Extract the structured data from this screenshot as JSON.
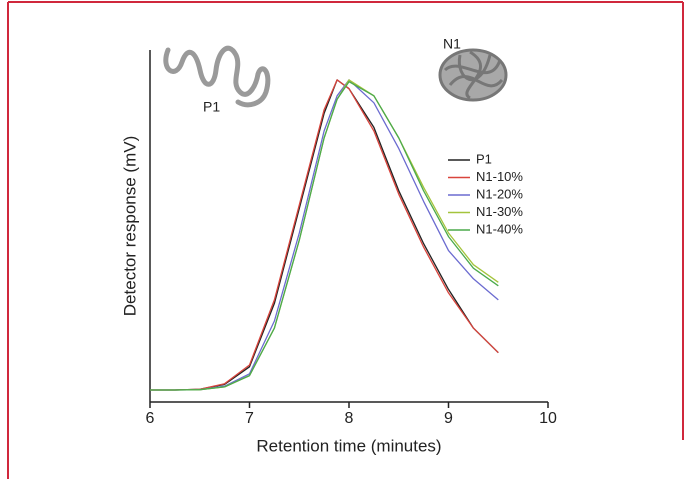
{
  "chart_data": {
    "type": "line",
    "xlabel": "Retention time (minutes)",
    "ylabel": "Detector response (mV)",
    "annotations": [
      "P1",
      "N1"
    ],
    "x": [
      6,
      6.25,
      6.5,
      6.75,
      7,
      7.25,
      7.5,
      7.75,
      7.88,
      8,
      8.25,
      8.5,
      8.75,
      9,
      9.25,
      9.5
    ],
    "series": [
      {
        "name": "P1",
        "color": "#222222",
        "values": [
          3.4,
          3.4,
          3.6,
          5,
          10,
          28,
          55,
          82,
          91.5,
          89,
          78,
          60,
          45,
          32,
          21,
          14
        ]
      },
      {
        "name": "N1-10%",
        "color": "#d9443c",
        "values": [
          3.4,
          3.4,
          3.6,
          5.2,
          10.5,
          29,
          56,
          83,
          91.5,
          89,
          77,
          59,
          44,
          31,
          21,
          14
        ]
      },
      {
        "name": "N1-20%",
        "color": "#6b6bd0",
        "values": [
          3.4,
          3.4,
          3.5,
          4.5,
          8,
          23,
          48,
          77,
          87,
          91.5,
          85,
          72,
          57,
          43,
          35,
          29
        ]
      },
      {
        "name": "N1-30%",
        "color": "#a4c43c",
        "values": [
          3.4,
          3.4,
          3.5,
          4.3,
          7.5,
          21,
          46,
          75,
          86,
          91.5,
          87,
          75,
          61,
          48,
          39,
          34
        ]
      },
      {
        "name": "N1-40%",
        "color": "#4caa4c",
        "values": [
          3.4,
          3.4,
          3.5,
          4.3,
          7.5,
          21,
          46,
          75,
          86,
          91,
          87,
          75,
          60,
          47,
          38,
          33
        ]
      }
    ],
    "xlim": [
      6,
      10
    ],
    "xticks": [
      6,
      7,
      8,
      9,
      10
    ],
    "ylim": [
      0,
      100
    ]
  }
}
